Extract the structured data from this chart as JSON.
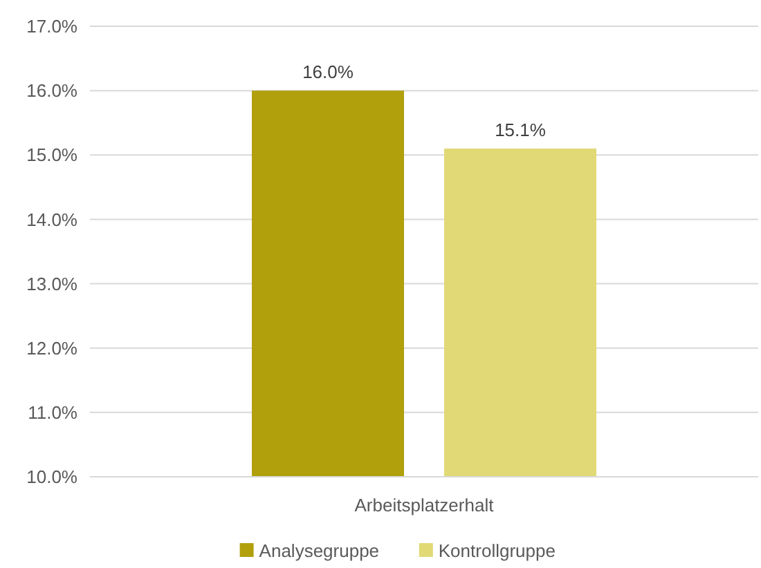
{
  "chart_data": {
    "type": "bar",
    "categories": [
      "Arbeitsplatzerhalt"
    ],
    "series": [
      {
        "name": "Analysegruppe",
        "color": "#b1a00c",
        "values": [
          16.0
        ],
        "value_labels": [
          "16.0%"
        ]
      },
      {
        "name": "Kontrollgruppe",
        "color": "#e1d975",
        "values": [
          15.1
        ],
        "value_labels": [
          "15.1%"
        ]
      }
    ],
    "ylim": [
      10,
      17
    ],
    "yticks": [
      {
        "value": 10,
        "label": "10.0%"
      },
      {
        "value": 11,
        "label": "11.0%"
      },
      {
        "value": 12,
        "label": "12.0%"
      },
      {
        "value": 13,
        "label": "13.0%"
      },
      {
        "value": 14,
        "label": "14.0%"
      },
      {
        "value": 15,
        "label": "15.0%"
      },
      {
        "value": 16,
        "label": "16.0%"
      },
      {
        "value": 17,
        "label": "17.0%"
      }
    ],
    "grid": "y",
    "legend": "bottom"
  }
}
